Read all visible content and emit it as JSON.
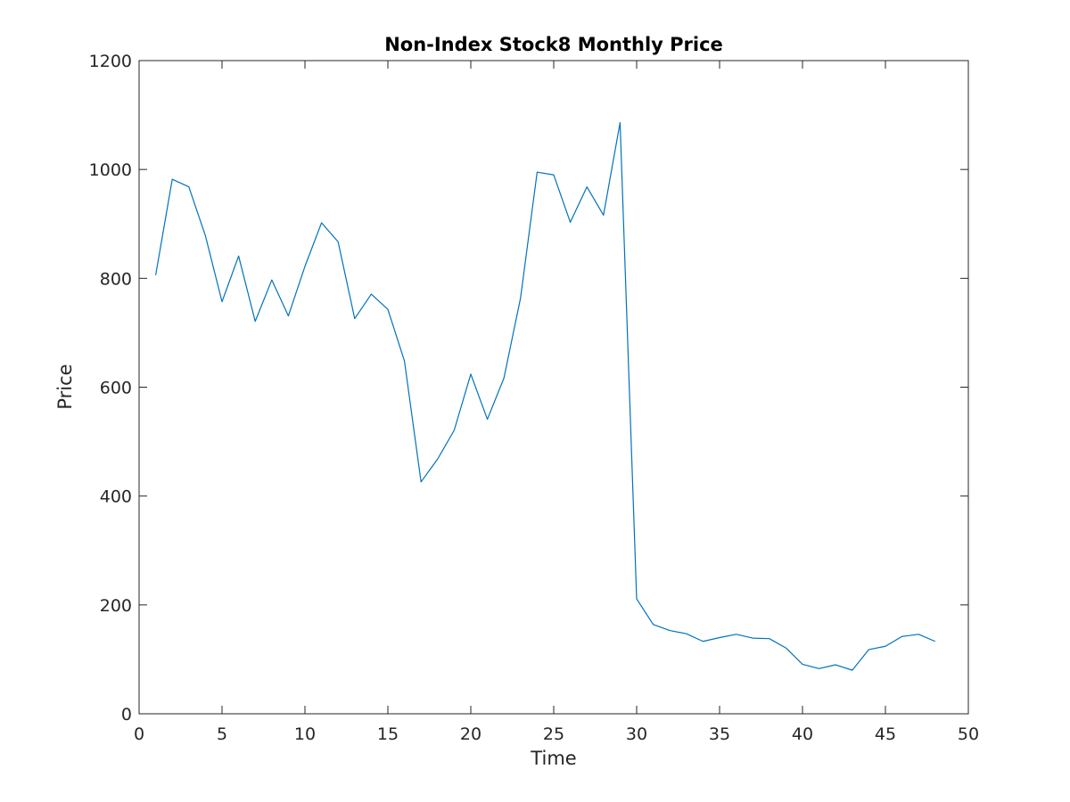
{
  "chart_data": {
    "type": "line",
    "title": "Non-Index Stock8 Monthly Price",
    "xlabel": "Time",
    "ylabel": "Price",
    "xlim": [
      0,
      50
    ],
    "ylim": [
      0,
      1200
    ],
    "xticks": [
      0,
      5,
      10,
      15,
      20,
      25,
      30,
      35,
      40,
      45,
      50
    ],
    "yticks": [
      0,
      200,
      400,
      600,
      800,
      1000,
      1200
    ],
    "grid": false,
    "series": [
      {
        "color": "#0072bd",
        "x": [
          1,
          2,
          3,
          4,
          5,
          6,
          7,
          8,
          9,
          10,
          11,
          12,
          13,
          14,
          15,
          16,
          17,
          18,
          19,
          20,
          21,
          22,
          23,
          24,
          25,
          26,
          27,
          28,
          29,
          30,
          31,
          32,
          33,
          34,
          35,
          36,
          37,
          38,
          39,
          40,
          41,
          42,
          43,
          44,
          45,
          46,
          47,
          48
        ],
        "y": [
          806,
          982,
          968,
          878,
          757,
          841,
          721,
          797,
          731,
          822,
          902,
          867,
          726,
          771,
          743,
          648,
          426,
          468,
          521,
          624,
          541,
          617,
          764,
          995,
          990,
          903,
          968,
          916,
          1086,
          211,
          164,
          153,
          147,
          133,
          140,
          146,
          139,
          138,
          121,
          91,
          83,
          90,
          80,
          118,
          124,
          142,
          146,
          133
        ]
      }
    ]
  }
}
